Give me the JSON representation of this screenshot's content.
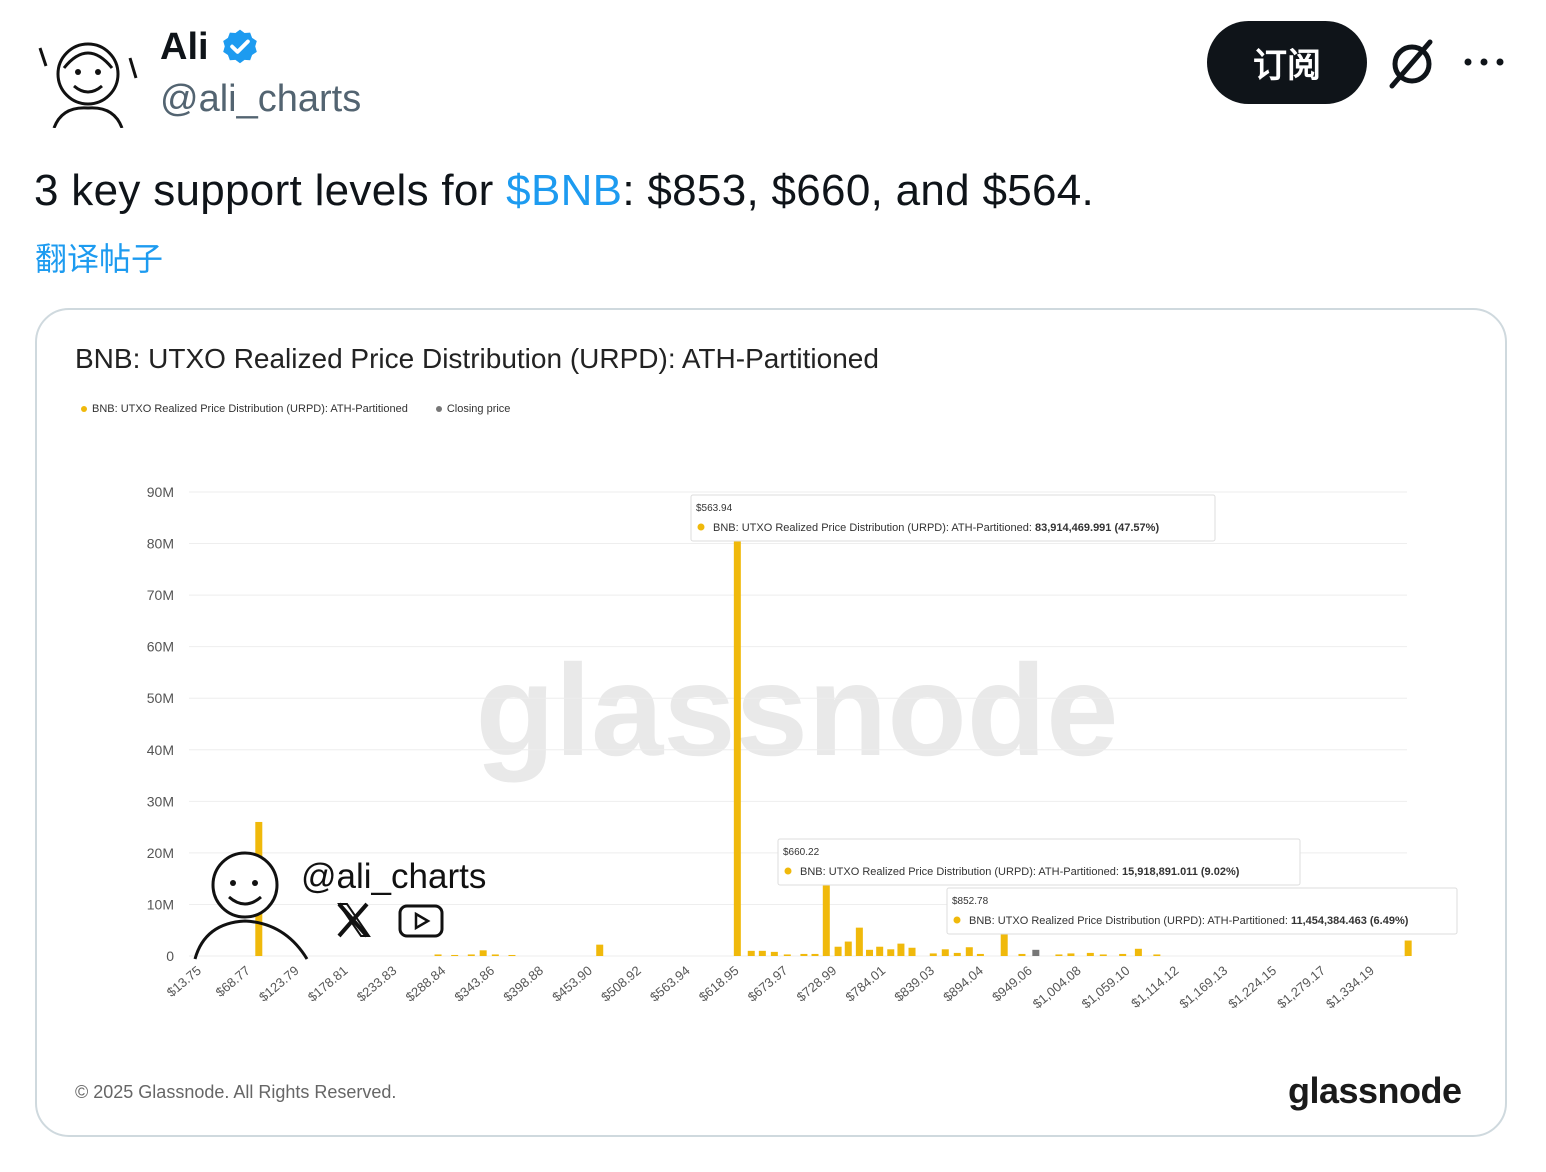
{
  "author": {
    "name": "Ali",
    "handle": "@ali_charts"
  },
  "actions": {
    "subscribe_label": "订阅"
  },
  "tweet": {
    "text_before": "3 key support levels for ",
    "cashtag": "$BNB",
    "text_after": ": $853, $660, and $564.",
    "translate_label": "翻译帖子"
  },
  "colors": {
    "accent": "#1d9bf0",
    "bar": "#f0b90b",
    "closing": "#777777"
  },
  "chart_data": {
    "type": "bar",
    "title": "BNB: UTXO Realized Price Distribution (URPD): ATH-Partitioned",
    "legend": [
      {
        "label": "BNB: UTXO Realized Price Distribution (URPD): ATH-Partitioned",
        "color": "#f0b90b"
      },
      {
        "label": "Closing price",
        "color": "#777777"
      }
    ],
    "ylim": [
      0,
      90000000
    ],
    "y_ticks": [
      "0",
      "10M",
      "20M",
      "30M",
      "40M",
      "50M",
      "60M",
      "70M",
      "80M",
      "90M"
    ],
    "x_range": [
      13.75,
      1334.19
    ],
    "x_ticks": [
      "$13.75",
      "$68.77",
      "$123.79",
      "$178.81",
      "$233.83",
      "$288.84",
      "$343.86",
      "$398.88",
      "$453.90",
      "$508.92",
      "$563.94",
      "$618.95",
      "$673.97",
      "$728.99",
      "$784.01",
      "$839.03",
      "$894.04",
      "$949.06",
      "$1,004.08",
      "$1,059.10",
      "$1,114.12",
      "$1,169.13",
      "$1,224.15",
      "$1,279.17",
      "$1,334.19"
    ],
    "bars": [
      {
        "x": 46,
        "y": 26000000
      },
      {
        "x": 240,
        "y": 300000
      },
      {
        "x": 258,
        "y": 200000
      },
      {
        "x": 276,
        "y": 300000
      },
      {
        "x": 288.84,
        "y": 1100000
      },
      {
        "x": 302,
        "y": 300000
      },
      {
        "x": 320,
        "y": 200000
      },
      {
        "x": 415,
        "y": 2200000
      },
      {
        "x": 563.94,
        "y": 83914469.991
      },
      {
        "x": 579,
        "y": 1000000
      },
      {
        "x": 591,
        "y": 1000000
      },
      {
        "x": 604,
        "y": 800000
      },
      {
        "x": 618,
        "y": 300000
      },
      {
        "x": 636,
        "y": 400000
      },
      {
        "x": 648,
        "y": 400000
      },
      {
        "x": 660.22,
        "y": 15918891.011
      },
      {
        "x": 673,
        "y": 1800000
      },
      {
        "x": 684,
        "y": 2800000
      },
      {
        "x": 696,
        "y": 5500000
      },
      {
        "x": 707,
        "y": 1200000
      },
      {
        "x": 718,
        "y": 1800000
      },
      {
        "x": 730,
        "y": 1300000
      },
      {
        "x": 741,
        "y": 2400000
      },
      {
        "x": 753,
        "y": 1600000
      },
      {
        "x": 776,
        "y": 500000
      },
      {
        "x": 789,
        "y": 1300000
      },
      {
        "x": 802,
        "y": 600000
      },
      {
        "x": 815,
        "y": 1700000
      },
      {
        "x": 827,
        "y": 400000
      },
      {
        "x": 852.78,
        "y": 11454384.463
      },
      {
        "x": 872,
        "y": 400000
      },
      {
        "x": 912,
        "y": 300000
      },
      {
        "x": 925,
        "y": 500000
      },
      {
        "x": 946,
        "y": 600000
      },
      {
        "x": 960,
        "y": 300000
      },
      {
        "x": 981,
        "y": 400000
      },
      {
        "x": 998,
        "y": 1400000
      },
      {
        "x": 1018,
        "y": 300000
      },
      {
        "x": 1290,
        "y": 3000000
      }
    ],
    "closing_price": {
      "x": 887,
      "y": 1200000
    },
    "tooltips": [
      {
        "price": "$563.94",
        "series": "BNB: UTXO Realized Price Distribution (URPD): ATH-Partitioned: ",
        "value": "83,914,469.991 (47.57%)"
      },
      {
        "price": "$660.22",
        "series": "BNB: UTXO Realized Price Distribution (URPD): ATH-Partitioned: ",
        "value": "15,918,891.011 (9.02%)"
      },
      {
        "price": "$852.78",
        "series": "BNB: UTXO Realized Price Distribution (URPD): ATH-Partitioned: ",
        "value": "11,454,384.463 (6.49%)"
      }
    ],
    "watermark": "glassnode",
    "overlay_handle": "@ali_charts",
    "copyright": "© 2025 Glassnode. All Rights Reserved.",
    "brand": "glassnode"
  },
  "icons": [
    "avatar",
    "verified-badge-icon",
    "grok-icon",
    "more-options-icon",
    "x-logo-icon",
    "youtube-icon"
  ]
}
